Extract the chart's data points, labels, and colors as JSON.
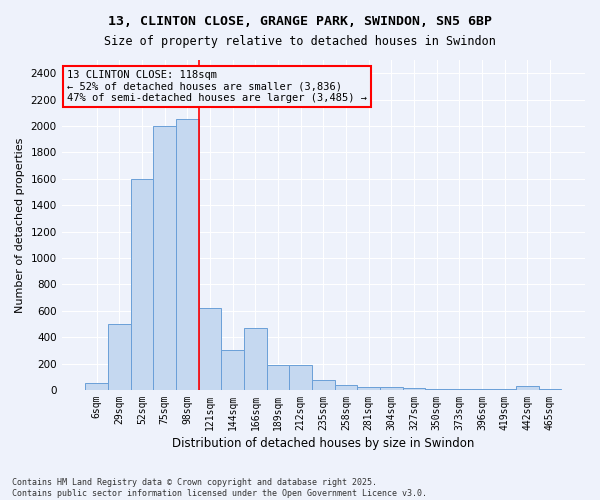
{
  "title": "13, CLINTON CLOSE, GRANGE PARK, SWINDON, SN5 6BP",
  "subtitle": "Size of property relative to detached houses in Swindon",
  "xlabel": "Distribution of detached houses by size in Swindon",
  "ylabel": "Number of detached properties",
  "footer_line1": "Contains HM Land Registry data © Crown copyright and database right 2025.",
  "footer_line2": "Contains public sector information licensed under the Open Government Licence v3.0.",
  "annotation_line1": "13 CLINTON CLOSE: 118sqm",
  "annotation_line2": "← 52% of detached houses are smaller (3,836)",
  "annotation_line3": "47% of semi-detached houses are larger (3,485) →",
  "bar_color": "#c5d8f0",
  "bar_edge_color": "#6a9fd8",
  "vline_color": "red",
  "annotation_box_color": "red",
  "background_color": "#eef2fb",
  "grid_color": "#ffffff",
  "categories": [
    "6sqm",
    "29sqm",
    "52sqm",
    "75sqm",
    "98sqm",
    "121sqm",
    "144sqm",
    "166sqm",
    "189sqm",
    "212sqm",
    "235sqm",
    "258sqm",
    "281sqm",
    "304sqm",
    "327sqm",
    "350sqm",
    "373sqm",
    "396sqm",
    "419sqm",
    "442sqm",
    "465sqm"
  ],
  "values": [
    50,
    500,
    1600,
    2000,
    2050,
    620,
    300,
    470,
    190,
    190,
    75,
    40,
    25,
    20,
    15,
    10,
    5,
    5,
    5,
    30,
    5
  ],
  "ylim": [
    0,
    2500
  ],
  "yticks": [
    0,
    200,
    400,
    600,
    800,
    1000,
    1200,
    1400,
    1600,
    1800,
    2000,
    2200,
    2400
  ],
  "vline_x": 4.5,
  "figsize": [
    6.0,
    5.0
  ],
  "dpi": 100
}
